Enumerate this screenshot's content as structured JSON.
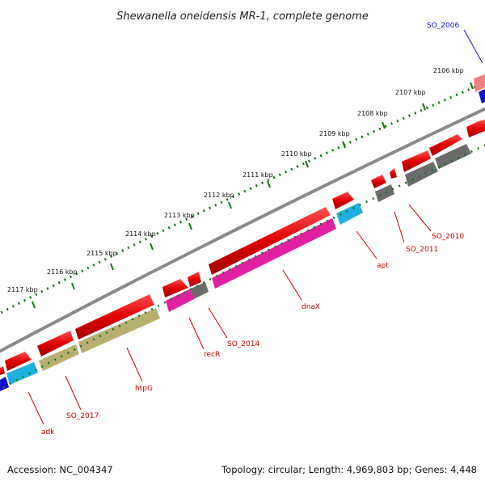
{
  "title": "Shewanella oneidensis MR-1, complete genome",
  "footer": {
    "accession": "Accession: NC_004347",
    "topology": "Topology: circular; Length: 4,969,803 bp; Genes: 4,448"
  },
  "kbp_labels": [
    "2106 kbp",
    "2107 kbp",
    "2108 kbp",
    "2109 kbp",
    "2110 kbp",
    "2111 kbp",
    "2112 kbp",
    "2113 kbp",
    "2114 kbp",
    "2115 kbp",
    "2116 kbp",
    "2117 kbp"
  ],
  "genes": [
    {
      "id": "SO_2006",
      "label": "SO_2006",
      "color": "#1111cc"
    },
    {
      "id": "SO_2010",
      "label": "SO_2010",
      "color": "#cc0000"
    },
    {
      "id": "SO_2011",
      "label": "SO_2011",
      "color": "#cc0000"
    },
    {
      "id": "apt",
      "label": "apt",
      "color": "#cc0000"
    },
    {
      "id": "dnaX",
      "label": "dnaX",
      "color": "#cc0000"
    },
    {
      "id": "SO_2014",
      "label": "SO_2014",
      "color": "#cc0000"
    },
    {
      "id": "recR",
      "label": "recR",
      "color": "#cc0000"
    },
    {
      "id": "htpG",
      "label": "htpG",
      "color": "#cc0000"
    },
    {
      "id": "SO_2017",
      "label": "SO_2017",
      "color": "#cc0000"
    },
    {
      "id": "adk",
      "label": "adk",
      "color": "#cc0000"
    }
  ],
  "colors": {
    "gene_red": "#e01010",
    "gene_red_light": "#f06a6a",
    "rna_grey": "#6b6b6b",
    "feature_magenta": "#e020a0",
    "feature_cyan": "#20b0e0",
    "feature_olive": "#b8b070",
    "feature_blue": "#1010cc",
    "tick_green": "#117711",
    "backbone_grey": "#8a8a8a"
  }
}
